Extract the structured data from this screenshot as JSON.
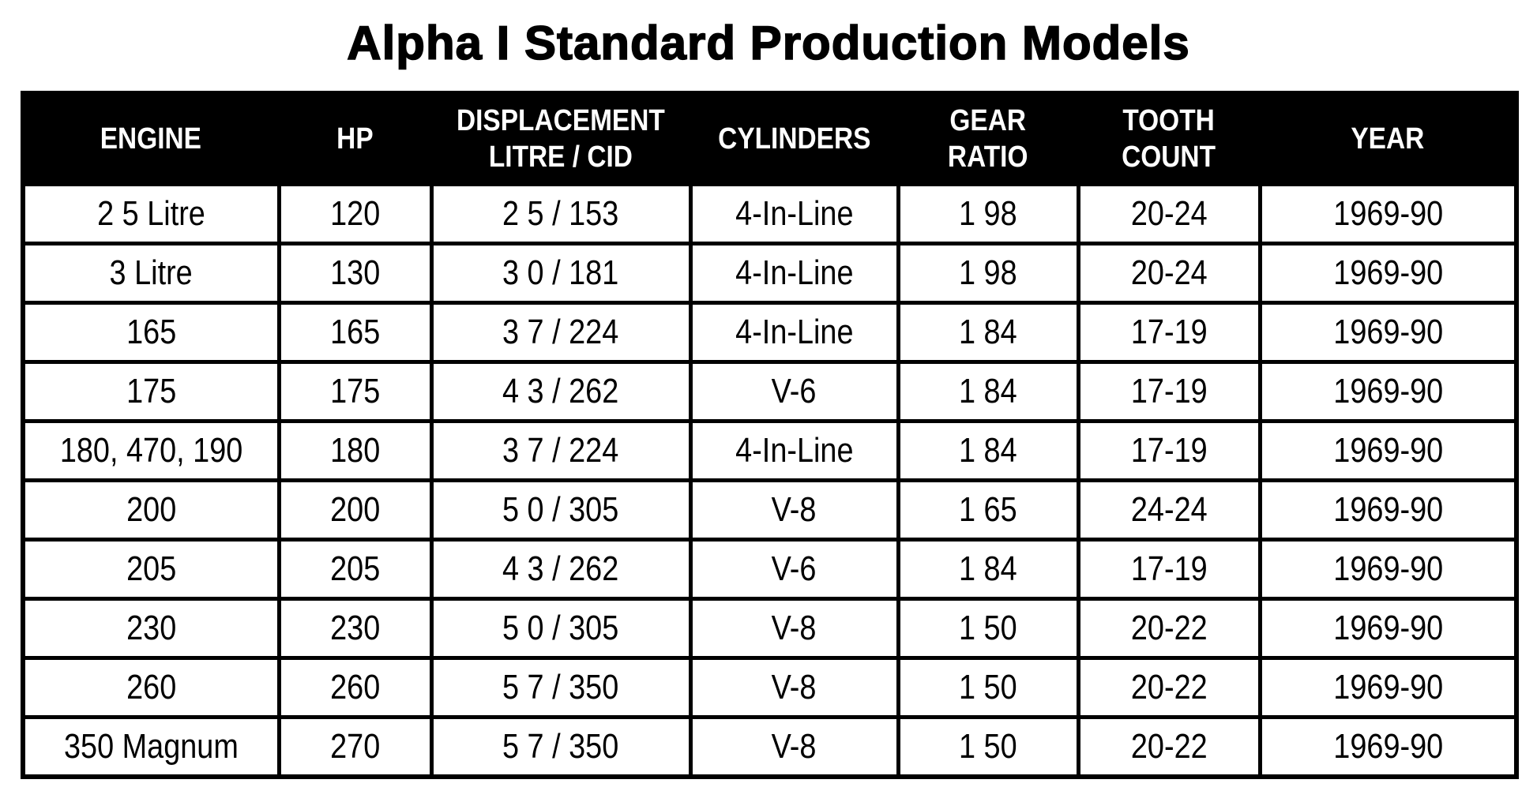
{
  "page": {
    "title": "Alpha I Standard Production Models"
  },
  "colors": {
    "page_bg": "#ffffff",
    "text": "#000000",
    "header_bg": "#000000",
    "header_text": "#ffffff",
    "border": "#000000"
  },
  "table": {
    "columns": [
      {
        "key": "engine",
        "lines": [
          "ENGINE"
        ]
      },
      {
        "key": "hp",
        "lines": [
          "HP"
        ]
      },
      {
        "key": "displacement",
        "lines": [
          "DISPLACEMENT",
          "LITRE / CID"
        ]
      },
      {
        "key": "cylinders",
        "lines": [
          "CYLINDERS"
        ]
      },
      {
        "key": "gear-ratio",
        "lines": [
          "GEAR",
          "RATIO"
        ]
      },
      {
        "key": "tooth-count",
        "lines": [
          "TOOTH",
          "COUNT"
        ]
      },
      {
        "key": "year",
        "lines": [
          "YEAR"
        ]
      }
    ],
    "rows": [
      [
        "2 5 Litre",
        "120",
        "2 5 / 153",
        "4-In-Line",
        "1 98",
        "20-24",
        "1969-90"
      ],
      [
        "3 Litre",
        "130",
        "3 0 / 181",
        "4-In-Line",
        "1 98",
        "20-24",
        "1969-90"
      ],
      [
        "165",
        "165",
        "3 7 / 224",
        "4-In-Line",
        "1 84",
        "17-19",
        "1969-90"
      ],
      [
        "175",
        "175",
        "4 3 / 262",
        "V-6",
        "1 84",
        "17-19",
        "1969-90"
      ],
      [
        "180, 470, 190",
        "180",
        "3 7 / 224",
        "4-In-Line",
        "1 84",
        "17-19",
        "1969-90"
      ],
      [
        "200",
        "200",
        "5 0 / 305",
        "V-8",
        "1 65",
        "24-24",
        "1969-90"
      ],
      [
        "205",
        "205",
        "4 3 / 262",
        "V-6",
        "1 84",
        "17-19",
        "1969-90"
      ],
      [
        "230",
        "230",
        "5 0 / 305",
        "V-8",
        "1 50",
        "20-22",
        "1969-90"
      ],
      [
        "260",
        "260",
        "5 7 / 350",
        "V-8",
        "1 50",
        "20-22",
        "1969-90"
      ],
      [
        "350 Magnum",
        "270",
        "5 7 / 350",
        "V-8",
        "1 50",
        "20-22",
        "1969-90"
      ]
    ]
  },
  "chart_data": {
    "type": "table",
    "title": "Alpha I Standard Production Models",
    "columns": [
      "ENGINE",
      "HP",
      "DISPLACEMENT LITRE / CID",
      "CYLINDERS",
      "GEAR RATIO",
      "TOOTH COUNT",
      "YEAR"
    ],
    "rows": [
      [
        "2 5 Litre",
        "120",
        "2 5 / 153",
        "4-In-Line",
        "1 98",
        "20-24",
        "1969-90"
      ],
      [
        "3 Litre",
        "130",
        "3 0 / 181",
        "4-In-Line",
        "1 98",
        "20-24",
        "1969-90"
      ],
      [
        "165",
        "165",
        "3 7 / 224",
        "4-In-Line",
        "1 84",
        "17-19",
        "1969-90"
      ],
      [
        "175",
        "175",
        "4 3 / 262",
        "V-6",
        "1 84",
        "17-19",
        "1969-90"
      ],
      [
        "180, 470, 190",
        "180",
        "3 7 / 224",
        "4-In-Line",
        "1 84",
        "17-19",
        "1969-90"
      ],
      [
        "200",
        "200",
        "5 0 / 305",
        "V-8",
        "1 65",
        "24-24",
        "1969-90"
      ],
      [
        "205",
        "205",
        "4 3 / 262",
        "V-6",
        "1 84",
        "17-19",
        "1969-90"
      ],
      [
        "230",
        "230",
        "5 0 / 305",
        "V-8",
        "1 50",
        "20-22",
        "1969-90"
      ],
      [
        "260",
        "260",
        "5 7 / 350",
        "V-8",
        "1 50",
        "20-22",
        "1969-90"
      ],
      [
        "350 Magnum",
        "270",
        "5 7 / 350",
        "V-8",
        "1 50",
        "20-22",
        "1969-90"
      ]
    ]
  }
}
